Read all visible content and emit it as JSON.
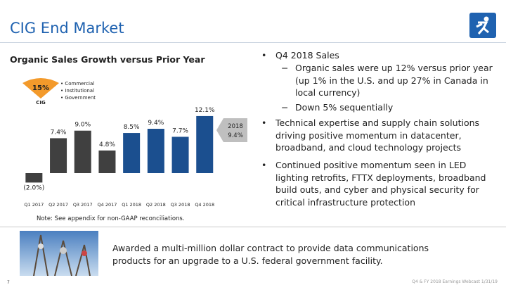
{
  "header": {
    "title": "CIG End Market",
    "page": "7",
    "footer": "Q4 & FY 2018 Earnings Webcast 1/31/19"
  },
  "chart_data": {
    "type": "bar",
    "title": "Organic Sales Growth versus Prior Year",
    "categories": [
      "Q1 2017",
      "Q2 2017",
      "Q3 2017",
      "Q4 2017",
      "Q1 2018",
      "Q2 2018",
      "Q3 2018",
      "Q4 2018"
    ],
    "values": [
      -2.0,
      7.4,
      9.0,
      4.8,
      8.5,
      9.4,
      7.7,
      12.1
    ],
    "value_labels": [
      "(2.0%)",
      "7.4%",
      "9.0%",
      "4.8%",
      "8.5%",
      "9.4%",
      "7.7%",
      "12.1%"
    ],
    "colors": [
      "#404040",
      "#404040",
      "#404040",
      "#404040",
      "#1b4f8f",
      "#1b4f8f",
      "#1b4f8f",
      "#1b4f8f"
    ],
    "callout": {
      "title": "2018",
      "text": "9.4%"
    },
    "note": "Note: See appendix for non-GAAP reconciliations."
  },
  "cig_mix": {
    "share": "15%",
    "name": "CIG",
    "items": [
      "Commercial",
      "Institutional",
      "Government"
    ]
  },
  "bullets": [
    {
      "text": "Q4 2018 Sales",
      "sub": [
        "Organic sales were up 12% versus prior year (up 1% in the U.S. and up 27% in Canada in local currency)",
        "Down 5% sequentially"
      ]
    },
    {
      "text": "Technical expertise and supply chain solutions driving positive momentum in datacenter, broadband, and cloud technology projects"
    },
    {
      "text": "Continued positive momentum seen in LED lighting retrofits, FTTX deployments, broadband build outs, and cyber and physical security for critical infrastructure protection"
    }
  ],
  "award": "Awarded a multi-million dollar contract to provide data communications products for an upgrade to a U.S. federal government facility."
}
